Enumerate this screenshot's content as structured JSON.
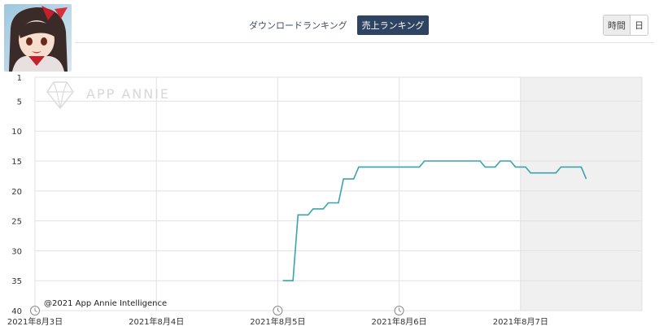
{
  "header": {
    "rank_tabs": [
      {
        "label": "ダウンロードランキング",
        "active": false
      },
      {
        "label": "売上ランキング",
        "active": true
      }
    ],
    "granularity": [
      {
        "label": "時間",
        "active": true
      },
      {
        "label": "日",
        "active": false
      }
    ]
  },
  "watermark": "APP ANNIE",
  "copyright": "@2021 App Annie Intelligence",
  "colors": {
    "line": "#3aa3ad",
    "shade": "#f0f0f0",
    "grid": "#e1e1e1",
    "active_tab": "#2f4463"
  },
  "chart_data": {
    "type": "line",
    "title": "",
    "xlabel": "",
    "ylabel": "",
    "y_inverted": true,
    "ylim": [
      1,
      40
    ],
    "y_ticks": [
      1,
      5,
      10,
      15,
      20,
      25,
      30,
      35,
      40
    ],
    "x_range": [
      "2021-08-03 00:00",
      "2021-08-08 00:00"
    ],
    "x_ticks": [
      {
        "label": "2021年8月3日",
        "value": "2021-08-03",
        "marker": true
      },
      {
        "label": "2021年8月4日",
        "value": "2021-08-04",
        "marker": false
      },
      {
        "label": "2021年8月5日",
        "value": "2021-08-05",
        "marker": true
      },
      {
        "label": "2021年8月6日",
        "value": "2021-08-06",
        "marker": true
      },
      {
        "label": "2021年8月7日",
        "value": "2021-08-07",
        "marker": false
      }
    ],
    "shaded_from": "2021-08-07",
    "grid": true,
    "series": [
      {
        "x": [
          "2021-08-05 01:00",
          "2021-08-05 03:00",
          "2021-08-05 04:00",
          "2021-08-05 06:00",
          "2021-08-05 07:00",
          "2021-08-05 09:00",
          "2021-08-05 10:00",
          "2021-08-05 12:00",
          "2021-08-05 13:00",
          "2021-08-05 15:00",
          "2021-08-05 16:00",
          "2021-08-05 18:00",
          "2021-08-05 19:00",
          "2021-08-06 04:00",
          "2021-08-06 05:00",
          "2021-08-06 16:00",
          "2021-08-06 17:00",
          "2021-08-06 19:00",
          "2021-08-06 20:00",
          "2021-08-06 22:00",
          "2021-08-06 23:00",
          "2021-08-07 01:00",
          "2021-08-07 02:00",
          "2021-08-07 07:00",
          "2021-08-07 08:00",
          "2021-08-07 12:00",
          "2021-08-07 13:00"
        ],
        "values": [
          35,
          35,
          24,
          24,
          23,
          23,
          22,
          22,
          18,
          18,
          16,
          16,
          16,
          16,
          15,
          15,
          16,
          16,
          15,
          15,
          16,
          16,
          17,
          17,
          16,
          16,
          18
        ]
      }
    ]
  }
}
